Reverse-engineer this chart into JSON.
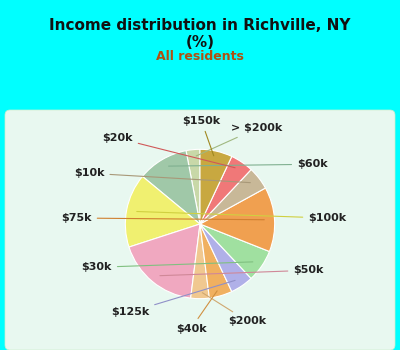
{
  "title": "Income distribution in Richville, NY\n(%)",
  "subtitle": "All residents",
  "title_color": "#111111",
  "subtitle_color": "#b05010",
  "bg_color": "#00ffff",
  "chart_bg_color": "#d8f5e8",
  "labels": [
    "> $200k",
    "$60k",
    "$100k",
    "$50k",
    "$200k",
    "$40k",
    "$125k",
    "$30k",
    "$75k",
    "$10k",
    "$20k",
    "$150k"
  ],
  "values": [
    3,
    11,
    16,
    18,
    4,
    5,
    5,
    7,
    14,
    5,
    5,
    7
  ],
  "colors": [
    "#c8d8a8",
    "#a0c8a8",
    "#f0f070",
    "#f0a8c0",
    "#f0c890",
    "#f0b060",
    "#b0b0e8",
    "#a0e0a0",
    "#f0a050",
    "#c8b898",
    "#f07878",
    "#c8a840"
  ],
  "label_fontsize": 8,
  "label_color": "#222222",
  "line_colors": [
    "#a0b880",
    "#80b090",
    "#d0d040",
    "#d08898",
    "#d0a870",
    "#d09040",
    "#9090c8",
    "#80c080",
    "#d08030",
    "#a89878",
    "#d05858",
    "#a08820"
  ]
}
